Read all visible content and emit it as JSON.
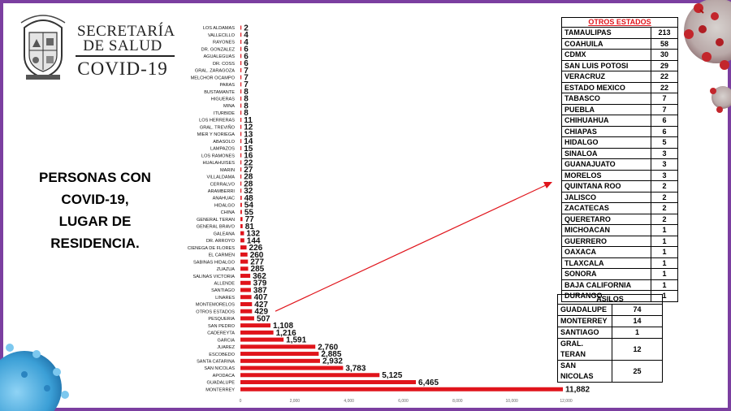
{
  "brand": {
    "line1": "SECRETARÍA",
    "line2": "DE SALUD",
    "line3": "COVID-19"
  },
  "side_title": [
    "PERSONAS CON",
    "COVID-19,",
    "LUGAR DE",
    "RESIDENCIA."
  ],
  "colors": {
    "bar": "#e0141b",
    "frame": "#7b3fa0",
    "table_header": "#e0141b"
  },
  "chart_data": {
    "type": "bar",
    "orientation": "horizontal",
    "categories": [
      "LOS ALDAMAS",
      "VALLECILLO",
      "RAYONES",
      "DR. GONZALEZ",
      "AGUALEGUAS",
      "DR. COSS",
      "GRAL. ZARAGOZA",
      "MELCHOR OCAMPO",
      "PARAS",
      "BUSTAMANTE",
      "HIGUERAS",
      "MINA",
      "ITURBIDE",
      "LOS HERRERAS",
      "GRAL. TREVIÑO",
      "MIER Y NORIEGA",
      "ABASOLO",
      "LAMPAZOS",
      "LOS RAMONES",
      "HUALAHUISES",
      "MARIN",
      "VILLALDAMA",
      "CERRALVO",
      "ARAMBERRI",
      "ANAHUAC",
      "HIDALGO",
      "CHINA",
      "GENERAL TERAN",
      "GENERAL BRAVO",
      "GALEANA",
      "DR. ARROYO",
      "CIENEGA DE FLORES",
      "EL CARMEN",
      "SABINAS HIDALGO",
      "ZUAZUA",
      "SALINAS VICTORIA",
      "ALLENDE",
      "SANTIAGO",
      "LINARES",
      "MONTEMORELOS",
      "OTROS ESTADOS",
      "PESQUERIA",
      "SAN PEDRO",
      "CADEREYTA",
      "GARCIA",
      "JUAREZ",
      "ESCOBEDO",
      "SANTA CATARINA",
      "SAN NICOLAS",
      "APODACA",
      "GUADALUPE",
      "MONTERREY"
    ],
    "values": [
      2,
      4,
      4,
      6,
      6,
      6,
      7,
      7,
      7,
      8,
      8,
      8,
      8,
      11,
      12,
      13,
      14,
      15,
      16,
      22,
      27,
      28,
      28,
      32,
      48,
      54,
      55,
      77,
      81,
      132,
      144,
      226,
      260,
      277,
      285,
      362,
      379,
      387,
      407,
      427,
      429,
      507,
      1108,
      1216,
      1591,
      2760,
      2885,
      2932,
      3783,
      5125,
      6465,
      11882
    ],
    "value_labels": [
      "2",
      "4",
      "4",
      "6",
      "6",
      "6",
      "7",
      "7",
      "7",
      "8",
      "8",
      "8",
      "8",
      "11",
      "12",
      "13",
      "14",
      "15",
      "16",
      "22",
      "27",
      "28",
      "28",
      "32",
      "48",
      "54",
      "55",
      "77",
      "81",
      "132",
      "144",
      "226",
      "260",
      "277",
      "285",
      "362",
      "379",
      "387",
      "407",
      "427",
      "429",
      "507",
      "1,108",
      "1,216",
      "1,591",
      "2,760",
      "2,885",
      "2,932",
      "3,783",
      "5,125",
      "6,465",
      "11,882"
    ],
    "xticks": [
      0,
      2000,
      4000,
      6000,
      8000,
      10000,
      12000
    ],
    "xtick_labels": [
      "0",
      "2,000",
      "4,000",
      "6,000",
      "8,000",
      "10,000",
      "12,000"
    ],
    "xlim": [
      0,
      12000
    ],
    "grid": false,
    "legend": "none"
  },
  "otros_estados": {
    "title": "OTROS ESTADOS",
    "rows": [
      {
        "name": "TAMAULIPAS",
        "value": "213"
      },
      {
        "name": "COAHUILA",
        "value": "58"
      },
      {
        "name": "CDMX",
        "value": "30"
      },
      {
        "name": "SAN LUIS POTOSI",
        "value": "29"
      },
      {
        "name": "VERACRUZ",
        "value": "22"
      },
      {
        "name": "ESTADO MEXICO",
        "value": "22"
      },
      {
        "name": "TABASCO",
        "value": "7"
      },
      {
        "name": "PUEBLA",
        "value": "7"
      },
      {
        "name": "CHIHUAHUA",
        "value": "6"
      },
      {
        "name": "CHIAPAS",
        "value": "6"
      },
      {
        "name": "HIDALGO",
        "value": "5"
      },
      {
        "name": "SINALOA",
        "value": "3"
      },
      {
        "name": "GUANAJUATO",
        "value": "3"
      },
      {
        "name": "MORELOS",
        "value": "3"
      },
      {
        "name": "QUINTANA ROO",
        "value": "2"
      },
      {
        "name": "JALISCO",
        "value": "2"
      },
      {
        "name": "ZACATECAS",
        "value": "2"
      },
      {
        "name": "QUERETARO",
        "value": "2"
      },
      {
        "name": "MICHOACAN",
        "value": "1"
      },
      {
        "name": "GUERRERO",
        "value": "1"
      },
      {
        "name": "OAXACA",
        "value": "1"
      },
      {
        "name": "TLAXCALA",
        "value": "1"
      },
      {
        "name": "SONORA",
        "value": "1"
      },
      {
        "name": "BAJA CALIFORNIA",
        "value": "1"
      },
      {
        "name": "DURANGO",
        "value": "1"
      }
    ]
  },
  "asilos": {
    "title": "ASILOS",
    "rows": [
      {
        "name": "GUADALUPE",
        "value": "74"
      },
      {
        "name": "MONTERREY",
        "value": "14"
      },
      {
        "name": "SANTIAGO",
        "value": "1"
      },
      {
        "name": "GRAL. TERAN",
        "value": "12"
      },
      {
        "name": "SAN NICOLAS",
        "value": "25"
      }
    ]
  }
}
